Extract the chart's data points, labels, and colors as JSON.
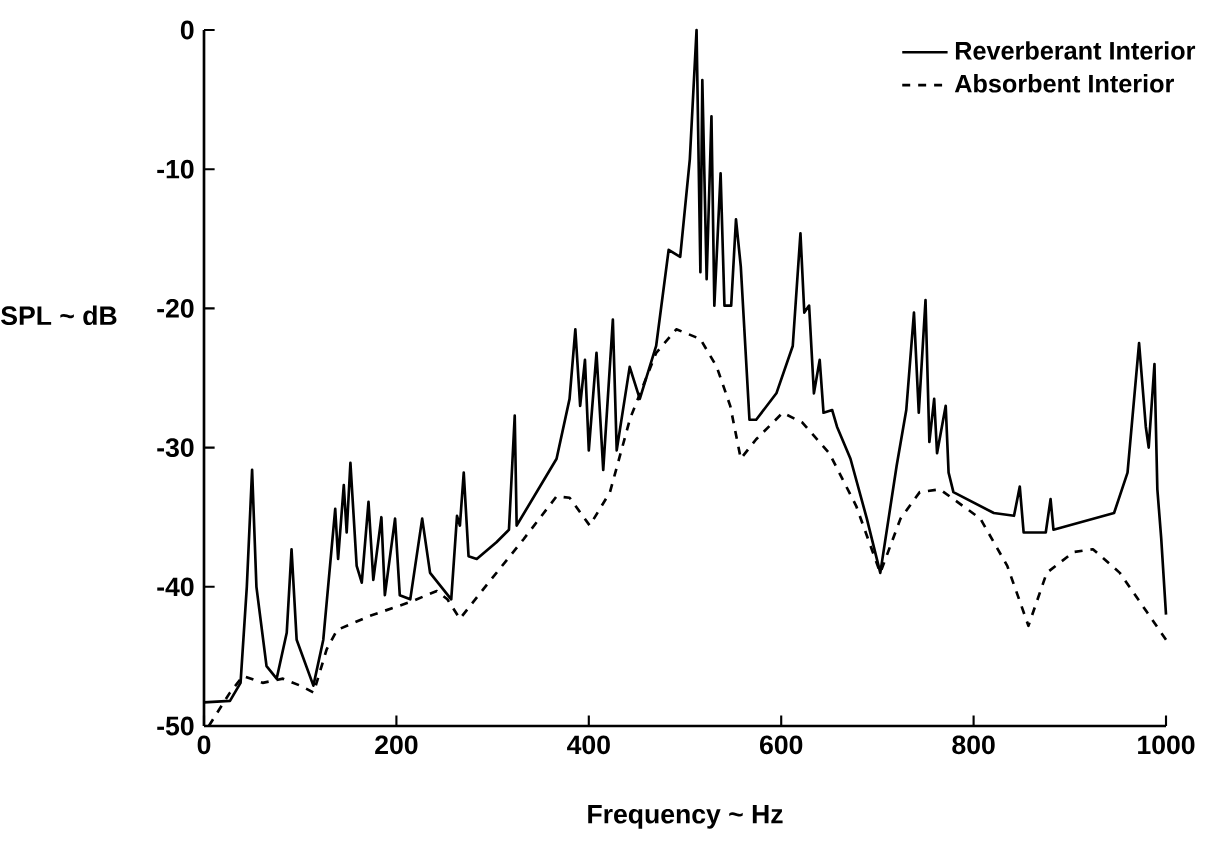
{
  "chart_data": {
    "type": "line",
    "xlabel": "Frequency ~ Hz",
    "ylabel": "SPL ~ dB",
    "xlim": [
      0,
      1000
    ],
    "ylim": [
      -50,
      0
    ],
    "xticks": [
      0,
      200,
      400,
      600,
      800,
      1000
    ],
    "yticks": [
      -50,
      -40,
      -30,
      -20,
      -10,
      0
    ],
    "legend": "top right",
    "series": [
      {
        "name": "Reverberant Interior",
        "color": "#000000",
        "line_style": "solid",
        "x": [
          0,
          27,
          38,
          44.5,
          50,
          54.5,
          65,
          75.5,
          86,
          91,
          96.3,
          113.7,
          124,
          136.4,
          139.4,
          145.3,
          148.3,
          152.2,
          158.7,
          164,
          171,
          176,
          184.4,
          188,
          198.6,
          203.5,
          214.4,
          226.8,
          235,
          257,
          263,
          266,
          270,
          275,
          283.5,
          304,
          317,
          323,
          325,
          366.5,
          380,
          386,
          391,
          396,
          400,
          408,
          415,
          425,
          429,
          442.5,
          453,
          470,
          483,
          495,
          505,
          512,
          516,
          518,
          522.5,
          527.5,
          530.5,
          537,
          541,
          548,
          553,
          558,
          567,
          574,
          595,
          612,
          620,
          624,
          629,
          634,
          640,
          644,
          653,
          658,
          672,
          689,
          703,
          720,
          730,
          738,
          743,
          750,
          754,
          759,
          762,
          771,
          774,
          779,
          821,
          842,
          848,
          852,
          875,
          880,
          883,
          946,
          960,
          972,
          979,
          982,
          988,
          991,
          995,
          1000
        ],
        "values": [
          -48.3,
          -48.2,
          -46.9,
          -40,
          -31.6,
          -40,
          -45.7,
          -46.6,
          -43.3,
          -37.3,
          -43.8,
          -47.1,
          -43.8,
          -34.4,
          -38,
          -32.7,
          -36.1,
          -31.1,
          -38.5,
          -39.7,
          -33.9,
          -39.5,
          -35,
          -40.6,
          -35.1,
          -40.6,
          -40.9,
          -35.1,
          -39,
          -40.9,
          -34.9,
          -35.6,
          -31.8,
          -37.8,
          -38,
          -36.8,
          -35.9,
          -27.7,
          -35.6,
          -30.8,
          -26.5,
          -21.5,
          -27,
          -23.7,
          -30.2,
          -23.2,
          -31.6,
          -20.8,
          -30.2,
          -24.2,
          -26.5,
          -22.7,
          -15.8,
          -16.3,
          -9.3,
          0,
          -17.4,
          -3.6,
          -17.9,
          -6.2,
          -19.8,
          -10.3,
          -19.8,
          -19.8,
          -13.6,
          -17,
          -28,
          -28,
          -26.1,
          -22.7,
          -14.6,
          -20.3,
          -19.8,
          -26.1,
          -23.7,
          -27.5,
          -27.3,
          -28.5,
          -30.8,
          -35.1,
          -39,
          -31.3,
          -27.3,
          -20.3,
          -27.5,
          -19.4,
          -29.6,
          -26.5,
          -30.4,
          -27,
          -31.8,
          -33.2,
          -34.7,
          -34.9,
          -32.8,
          -36.1,
          -36.1,
          -33.7,
          -35.9,
          -34.7,
          -31.8,
          -22.5,
          -28.5,
          -30,
          -24,
          -33,
          -36.5,
          -42
        ]
      },
      {
        "name": "Absorbent Interior",
        "color": "#000000",
        "line_style": "dashed",
        "x": [
          5,
          27,
          40.6,
          61,
          82,
          100,
          114,
          127.5,
          138.4,
          172,
          214,
          242,
          253,
          266,
          290,
          332,
          366.5,
          380,
          401,
          422,
          443,
          470,
          491,
          516,
          533,
          547,
          558,
          574,
          601.5,
          622,
          650,
          678,
          703,
          724,
          744,
          765,
          779,
          807,
          835,
          857,
          876,
          904,
          924,
          952,
          980,
          1000
        ],
        "values": [
          -50,
          -47.6,
          -46.4,
          -46.9,
          -46.6,
          -47.1,
          -47.6,
          -44.5,
          -43.1,
          -42.1,
          -41.1,
          -40.3,
          -40.9,
          -42.3,
          -40.2,
          -36.6,
          -33.5,
          -33.6,
          -35.6,
          -33.2,
          -27.9,
          -23.2,
          -21.5,
          -22.2,
          -24.2,
          -27,
          -30.8,
          -29.4,
          -27.5,
          -28.2,
          -30.4,
          -34.2,
          -39,
          -35.1,
          -33.2,
          -33,
          -33.7,
          -35.1,
          -38.5,
          -42.8,
          -39,
          -37.5,
          -37.3,
          -39,
          -41.8,
          -43.8
        ]
      }
    ]
  }
}
